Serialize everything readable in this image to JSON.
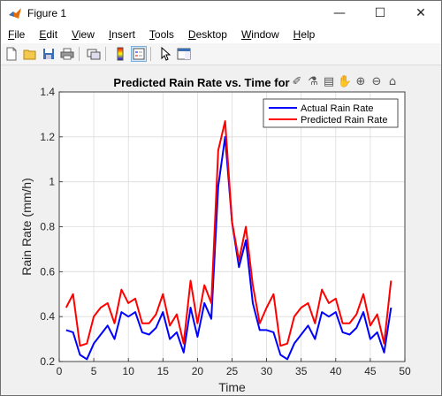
{
  "window": {
    "title": "Figure 1",
    "controls": {
      "minimize": "—",
      "maximize": "☐",
      "close": "✕"
    }
  },
  "menu": [
    "File",
    "Edit",
    "View",
    "Insert",
    "Tools",
    "Desktop",
    "Window",
    "Help"
  ],
  "toolbar": {
    "icons": [
      "new-figure-icon",
      "open-file-icon",
      "save-icon",
      "print-icon",
      "link-plot-icon",
      "insert-colorbar-icon",
      "insert-legend-icon",
      "edit-plot-icon",
      "property-inspector-icon"
    ]
  },
  "axes_toolbar": {
    "icons": [
      "brush-icon",
      "data-tips-icon",
      "zoom-in-icon",
      "pan-icon",
      "zoom-out-icon",
      "home-icon"
    ],
    "glyphs": [
      "✐",
      "⚗",
      "▤",
      "✋",
      "⊕",
      "⊖",
      "⌂"
    ]
  },
  "colors": {
    "actual": "#0000ff",
    "predicted": "#ff0000",
    "grid": "#dcdcdc",
    "axes_bg": "#ffffff"
  },
  "chart_data": {
    "type": "line",
    "title": "Predicted Rain Rate vs. Time for",
    "xlabel": "Time",
    "ylabel": "Rain Rate (mm/h)",
    "xlim": [
      0,
      50
    ],
    "ylim": [
      0.2,
      1.4
    ],
    "xticks": [
      0,
      5,
      10,
      15,
      20,
      25,
      30,
      35,
      40,
      45,
      50
    ],
    "yticks": [
      0.2,
      0.4,
      0.6,
      0.8,
      1,
      1.2,
      1.4
    ],
    "grid": true,
    "legend_position": "top-right",
    "x": [
      1,
      2,
      3,
      4,
      5,
      6,
      7,
      8,
      9,
      10,
      11,
      12,
      13,
      14,
      15,
      16,
      17,
      18,
      19,
      20,
      21,
      22,
      23,
      24,
      25,
      26,
      27,
      28,
      29,
      30,
      31,
      32,
      33,
      34,
      35,
      36,
      37,
      38,
      39,
      40,
      41,
      42,
      43,
      44,
      45,
      46,
      47,
      48
    ],
    "series": [
      {
        "name": "Actual Rain Rate",
        "values": [
          0.34,
          0.33,
          0.23,
          0.21,
          0.28,
          0.32,
          0.36,
          0.3,
          0.42,
          0.4,
          0.42,
          0.33,
          0.32,
          0.35,
          0.42,
          0.3,
          0.33,
          0.24,
          0.44,
          0.31,
          0.46,
          0.39,
          0.98,
          1.2,
          0.82,
          0.62,
          0.74,
          0.46,
          0.34,
          0.34,
          0.33,
          0.23,
          0.21,
          0.28,
          0.32,
          0.36,
          0.3,
          0.42,
          0.4,
          0.42,
          0.33,
          0.32,
          0.35,
          0.42,
          0.3,
          0.33,
          0.24,
          0.44
        ]
      },
      {
        "name": "Predicted Rain Rate",
        "values": [
          0.44,
          0.5,
          0.27,
          0.28,
          0.4,
          0.44,
          0.46,
          0.37,
          0.52,
          0.46,
          0.48,
          0.37,
          0.37,
          0.41,
          0.5,
          0.36,
          0.41,
          0.28,
          0.56,
          0.37,
          0.54,
          0.46,
          1.14,
          1.27,
          0.82,
          0.65,
          0.8,
          0.54,
          0.37,
          0.44,
          0.5,
          0.27,
          0.28,
          0.4,
          0.44,
          0.46,
          0.37,
          0.52,
          0.46,
          0.48,
          0.37,
          0.37,
          0.41,
          0.5,
          0.36,
          0.41,
          0.28,
          0.56
        ]
      }
    ]
  }
}
